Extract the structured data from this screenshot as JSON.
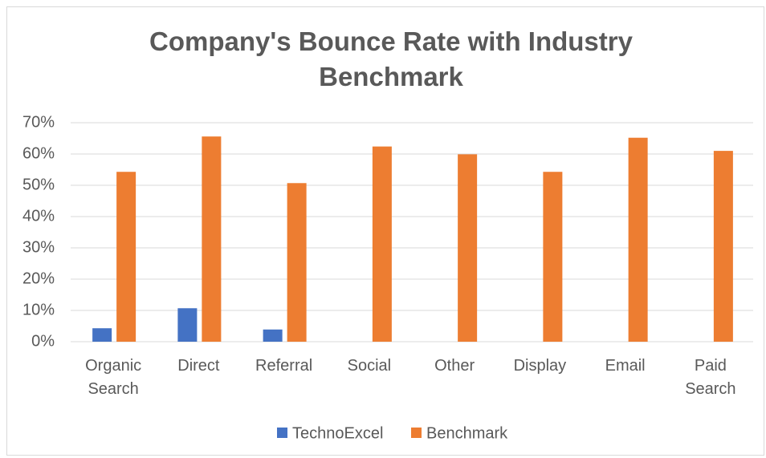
{
  "chart_data": {
    "type": "bar",
    "title": "Company's Bounce Rate with Industry Benchmark",
    "categories": [
      "Organic Search",
      "Direct",
      "Referral",
      "Social",
      "Other",
      "Display",
      "Email",
      "Paid Search"
    ],
    "series": [
      {
        "name": "TechnoExcel",
        "color": "#4472c4",
        "values": [
          4.3,
          10.7,
          3.9,
          null,
          null,
          null,
          null,
          null
        ]
      },
      {
        "name": "Benchmark",
        "color": "#ed7d31",
        "values": [
          54.3,
          65.6,
          50.7,
          62.4,
          59.9,
          54.3,
          65.2,
          61.0
        ]
      }
    ],
    "ylim": [
      0,
      70
    ],
    "yticks": [
      {
        "value": 0,
        "label": "0%"
      },
      {
        "value": 10,
        "label": "10%"
      },
      {
        "value": 20,
        "label": "20%"
      },
      {
        "value": 30,
        "label": "30%"
      },
      {
        "value": 40,
        "label": "40%"
      },
      {
        "value": 50,
        "label": "50%"
      },
      {
        "value": 60,
        "label": "60%"
      },
      {
        "value": 70,
        "label": "70%"
      }
    ],
    "grid": true,
    "legend": "bottom"
  }
}
